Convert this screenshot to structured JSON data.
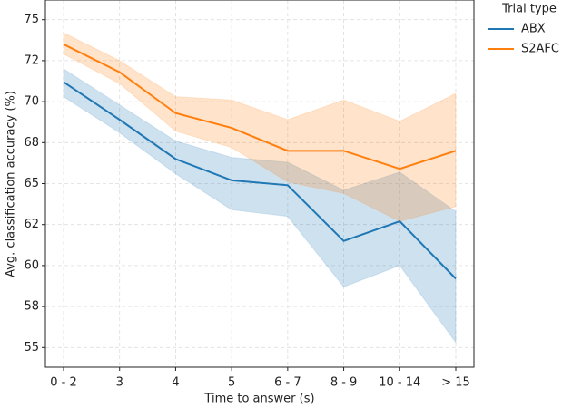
{
  "chart_data": {
    "type": "line",
    "xlabel": "Time to answer (s)",
    "ylabel": "Avg. classification accuracy (%)",
    "categories": [
      "0 - 2",
      "3",
      "4",
      "5",
      "6 - 7",
      "8 - 9",
      "10 - 14",
      "> 15"
    ],
    "ylim": [
      53.8,
      76.2
    ],
    "yticks": [
      55,
      {
        "value": 57.5,
        "label": "58"
      },
      60,
      {
        "value": 62.5,
        "label": "62"
      },
      65,
      {
        "value": 67.5,
        "label": "68"
      },
      70,
      {
        "value": 72.5,
        "label": "72"
      },
      75
    ],
    "grid": true,
    "legend_title": "Trial type",
    "legend_position": "outside-right",
    "series": [
      {
        "name": "ABX",
        "color": "#1f77b4",
        "values": [
          71.2,
          68.9,
          66.5,
          65.2,
          64.9,
          61.5,
          62.7,
          59.2
        ],
        "upper": [
          72.0,
          69.8,
          67.6,
          66.6,
          66.3,
          64.6,
          65.7,
          63.3
        ],
        "lower": [
          70.3,
          68.1,
          65.6,
          63.4,
          63.0,
          58.7,
          60.0,
          55.3
        ]
      },
      {
        "name": "S2AFC",
        "color": "#ff7f0e",
        "values": [
          73.5,
          71.8,
          69.3,
          68.4,
          67.0,
          67.0,
          65.9,
          67.0
        ],
        "upper": [
          74.2,
          72.5,
          70.3,
          70.1,
          68.9,
          70.1,
          68.8,
          70.5
        ],
        "lower": [
          72.9,
          71.1,
          68.2,
          67.2,
          65.1,
          64.4,
          62.7,
          63.6
        ]
      }
    ]
  }
}
